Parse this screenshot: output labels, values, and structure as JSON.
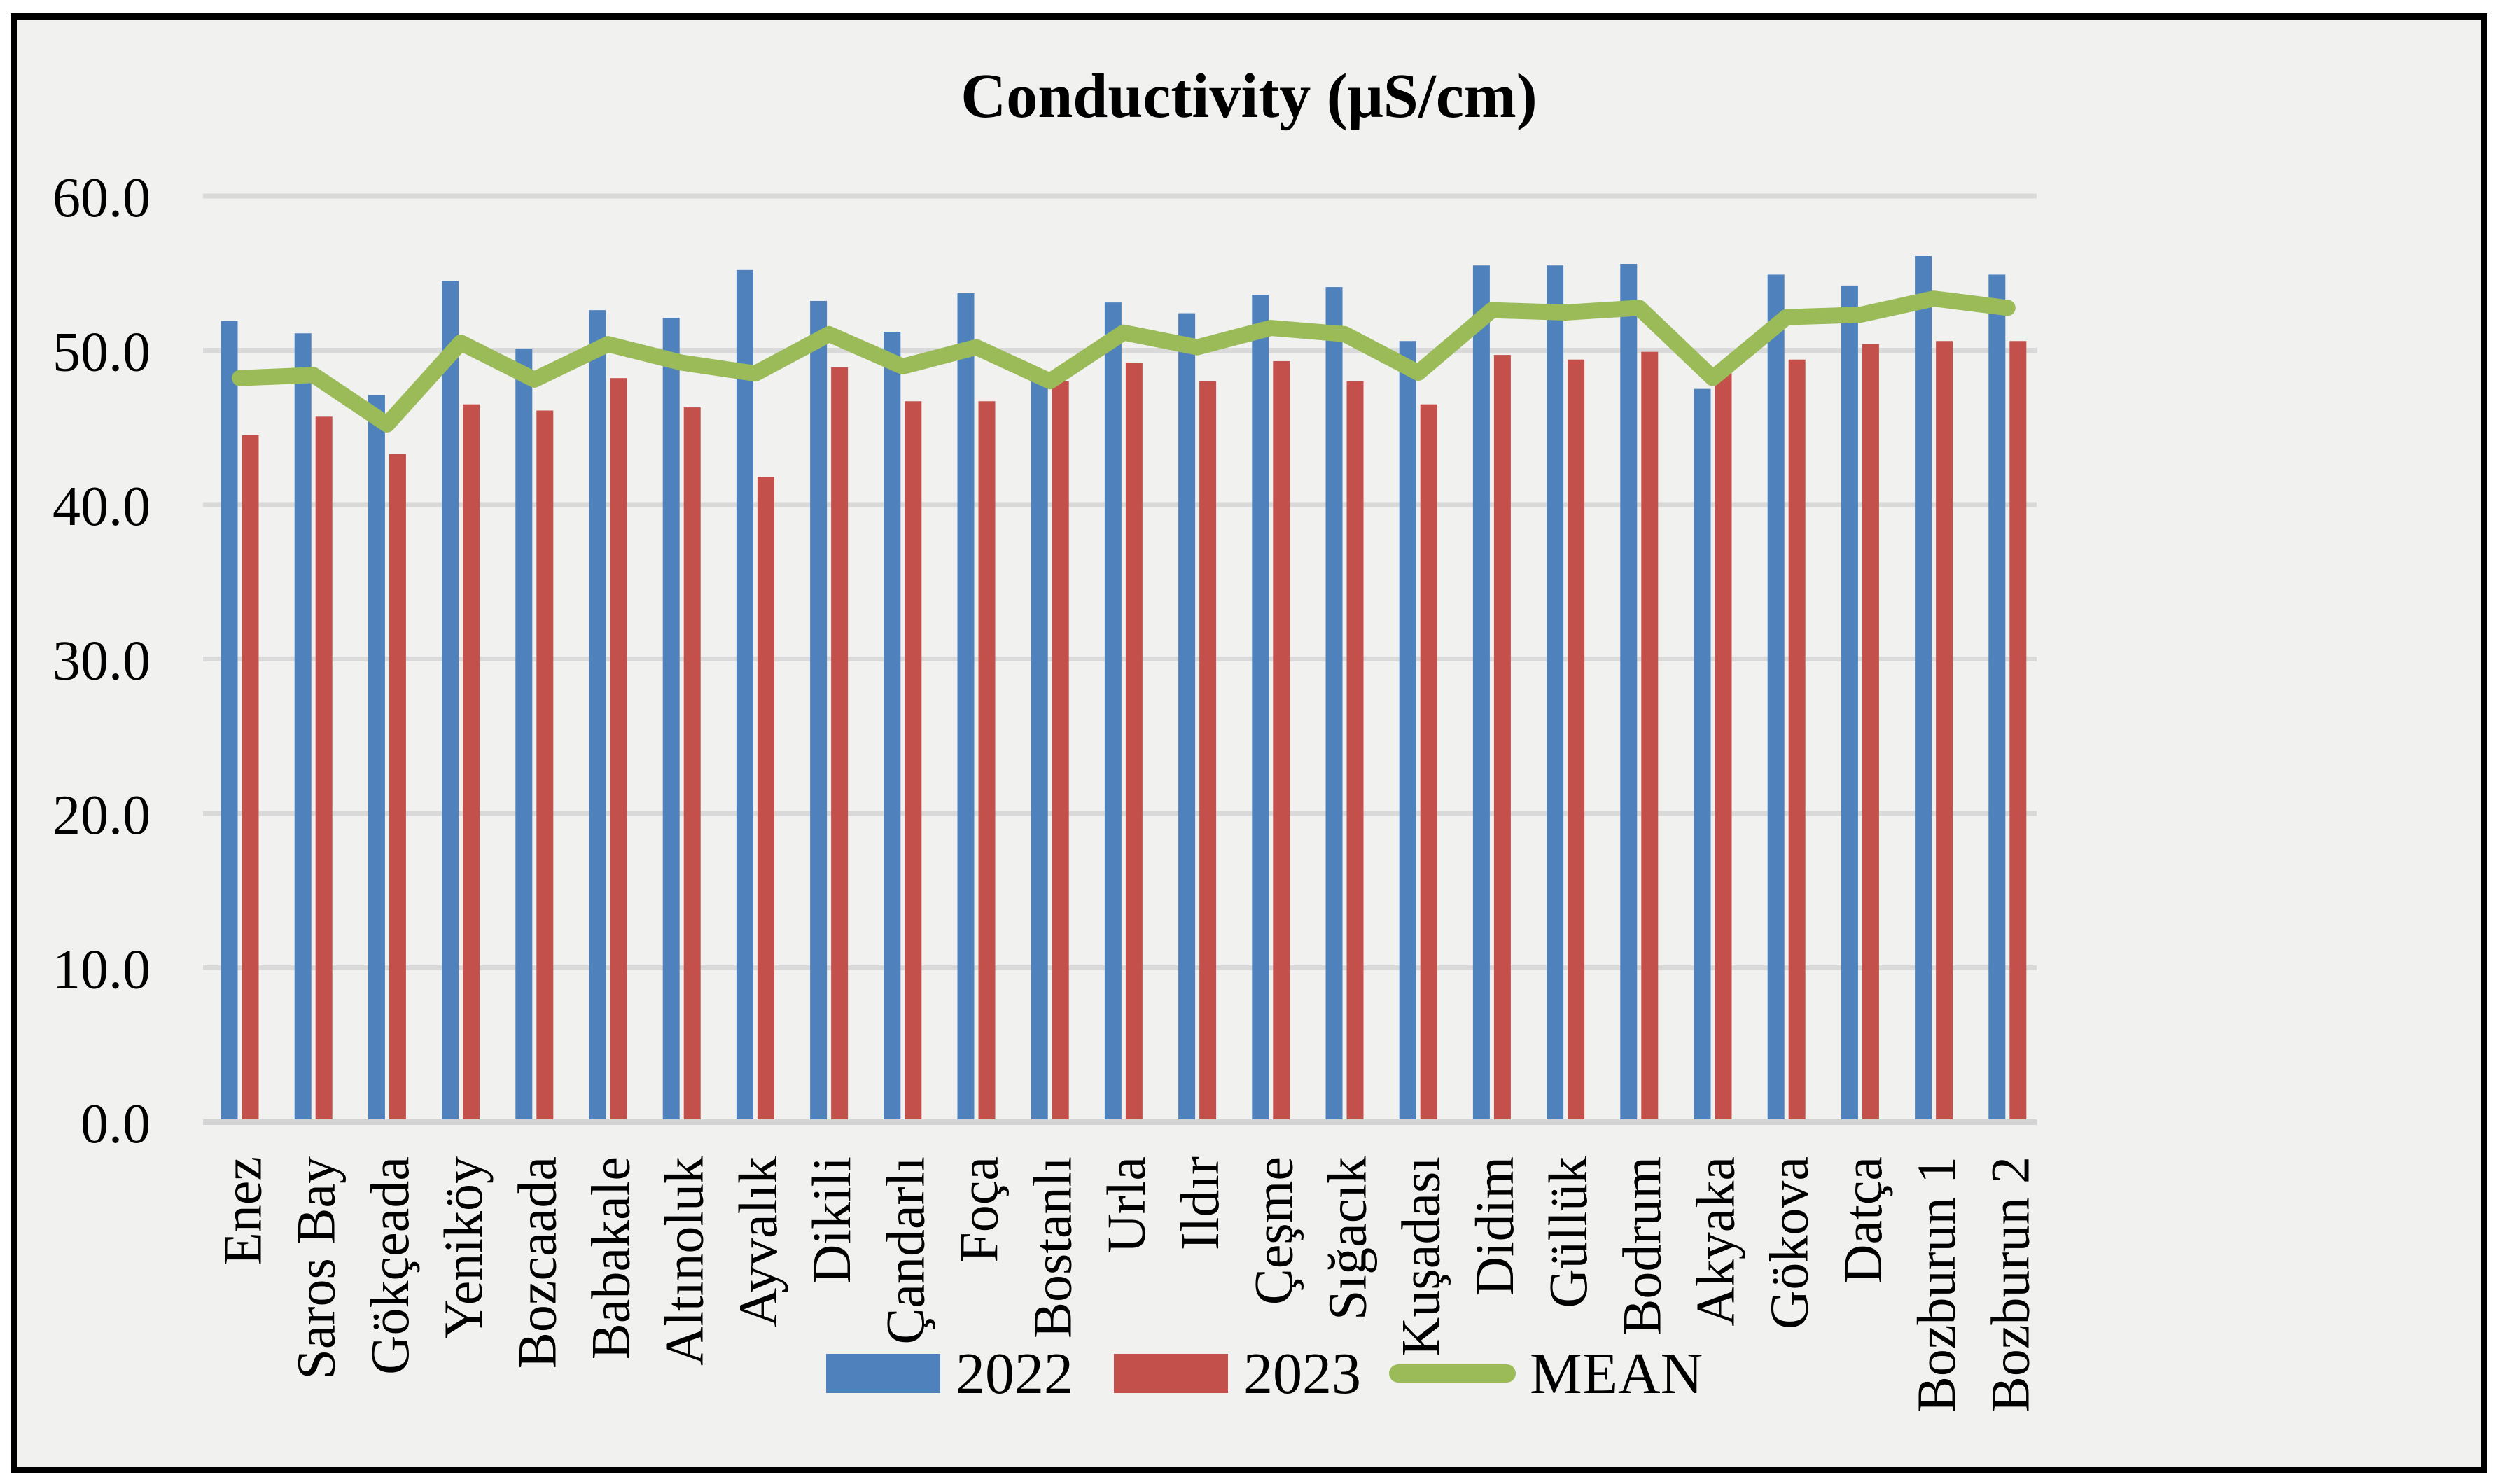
{
  "window": {
    "outer_background": "#ffffff",
    "frame_border_color": "#000000",
    "chart_background": "#f1f1f0"
  },
  "chart_data": {
    "type": "bar",
    "title": "Conductivity (μS/cm)",
    "categories": [
      "Enez",
      "Saros Bay",
      "Gökçeada",
      "Yeniköy",
      "Bozcaada",
      "Babakale",
      "Altınoluk",
      "Ayvalık",
      "Dikili",
      "Çandarlı",
      "Foça",
      "Bostanlı",
      "Urla",
      "Ildır",
      "Çeşme",
      "Sığacık",
      "Kuşadası",
      "Didim",
      "Güllük",
      "Bodrum",
      "Akyaka",
      "Gökova",
      "Datça",
      "Bozburun 1",
      "Bozburun 2"
    ],
    "series": [
      {
        "name": "2022",
        "type": "bar",
        "color": "#4F81BD",
        "values": [
          51.9,
          51.1,
          47.1,
          54.5,
          50.1,
          52.6,
          52.1,
          55.2,
          53.2,
          51.2,
          53.7,
          48.0,
          53.1,
          52.4,
          53.6,
          54.1,
          50.6,
          55.5,
          55.5,
          55.6,
          47.5,
          54.9,
          54.2,
          56.1,
          54.9
        ]
      },
      {
        "name": "2023",
        "type": "bar",
        "color": "#C3504B",
        "values": [
          44.5,
          45.7,
          43.3,
          46.5,
          46.1,
          48.2,
          46.3,
          41.8,
          48.9,
          46.7,
          46.7,
          48.0,
          49.2,
          48.0,
          49.3,
          48.0,
          46.5,
          49.7,
          49.4,
          49.9,
          48.9,
          49.4,
          50.4,
          50.6,
          50.6
        ]
      },
      {
        "name": "MEAN",
        "type": "line",
        "color": "#9BBB59",
        "values": [
          48.2,
          48.4,
          45.2,
          50.5,
          48.1,
          50.4,
          49.2,
          48.5,
          51.05,
          48.95,
          50.2,
          48.0,
          51.15,
          50.2,
          51.45,
          51.05,
          48.55,
          52.6,
          52.45,
          52.75,
          48.2,
          52.15,
          52.3,
          53.35,
          52.75
        ]
      }
    ],
    "ylim": [
      0,
      60
    ],
    "ytick_step": 10,
    "ytick_labels": [
      "0.0",
      "10.0",
      "20.0",
      "30.0",
      "40.0",
      "50.0",
      "60.0"
    ],
    "xlabel": "",
    "ylabel": "",
    "grid": "horizontal",
    "gridline_color": "#D9D9D9",
    "axis_line_color": "#D3D3D3",
    "legend_position": "bottom",
    "x_label_rotation_deg": -90
  }
}
